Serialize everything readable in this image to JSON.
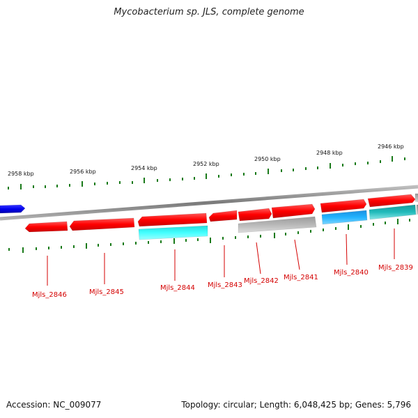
{
  "title": "Mycobacterium sp. JLS, complete genome",
  "accession": "Accession: NC_009077",
  "summary": "Topology: circular; Length: 6,048,425 bp; Genes: 5,796",
  "colors": {
    "forward_gene": "#ff0000",
    "reverse_gene": "#ff0000",
    "cds_cyan": "#33ffff",
    "cds_blue": "#22aaff",
    "cds_teal": "#22bbbb",
    "cds_gray": "#b4b4b4",
    "cds_dark_blue": "#0000ee",
    "backbone": "#8a8a8a",
    "tick": "#1a7a1a",
    "label": "#d40000"
  },
  "kbp_labels": [
    "2958 kbp",
    "2956 kbp",
    "2954 kbp",
    "2952 kbp",
    "2950 kbp",
    "2948 kbp",
    "2946 kbp"
  ],
  "gene_labels": [
    "Mjls_2846",
    "Mjls_2845",
    "Mjls_2844",
    "Mjls_2843",
    "Mjls_2842",
    "Mjls_2841",
    "Mjls_2840",
    "Mjls_2839"
  ]
}
